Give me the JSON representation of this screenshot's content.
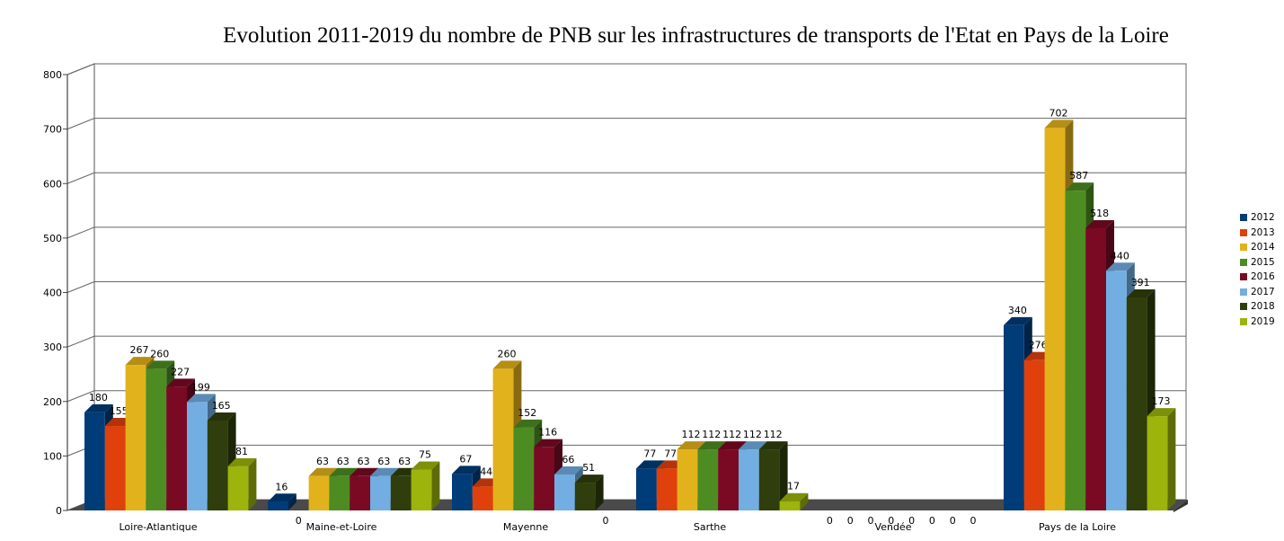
{
  "chart_data": {
    "type": "bar",
    "title": "Evolution 2011-2019 du nombre de PNB sur les infrastructures de transports de l'Etat en Pays de la Loire",
    "xlabel": "",
    "ylabel": "",
    "ylim": [
      0,
      800
    ],
    "yticks": [
      "0",
      "100",
      "200",
      "300",
      "400",
      "500",
      "600",
      "700",
      "800"
    ],
    "grid": true,
    "legend_position": "right",
    "categories": [
      "Loire-Atlantique",
      "Maine-et-Loire",
      "Mayenne",
      "Sarthe",
      "Vendée",
      "Pays de la Loire"
    ],
    "series": [
      {
        "name": "2012",
        "color": "#003c78",
        "values": [
          180,
          16,
          67,
          77,
          0,
          340
        ]
      },
      {
        "name": "2013",
        "color": "#e0400c",
        "values": [
          155,
          0,
          44,
          77,
          0,
          276
        ]
      },
      {
        "name": "2014",
        "color": "#e2b21c",
        "values": [
          267,
          63,
          260,
          112,
          0,
          702
        ]
      },
      {
        "name": "2015",
        "color": "#4d8c22",
        "values": [
          260,
          63,
          152,
          112,
          0,
          587
        ]
      },
      {
        "name": "2016",
        "color": "#7a0a24",
        "values": [
          227,
          63,
          116,
          112,
          0,
          518
        ]
      },
      {
        "name": "2017",
        "color": "#72aee2",
        "values": [
          199,
          63,
          66,
          112,
          0,
          440
        ]
      },
      {
        "name": "2018",
        "color": "#2f3e0c",
        "values": [
          165,
          63,
          51,
          112,
          0,
          391
        ]
      },
      {
        "name": "2019",
        "color": "#9cb40c",
        "values": [
          81,
          75,
          0,
          17,
          0,
          173
        ]
      }
    ]
  }
}
